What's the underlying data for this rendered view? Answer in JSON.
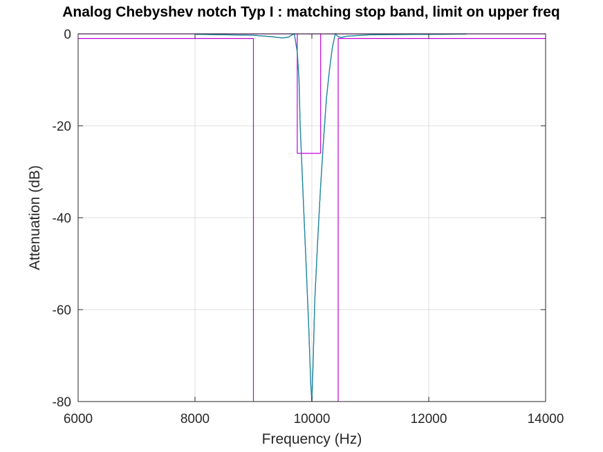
{
  "chart_data": {
    "type": "line",
    "title": "Analog Chebyshev notch Typ I : matching stop band, limit on upper freq",
    "xlabel": "Frequency (Hz)",
    "ylabel": "Attenuation (dB)",
    "xlim": [
      6000,
      14000
    ],
    "ylim": [
      -80,
      0
    ],
    "xticks": [
      6000,
      8000,
      10000,
      12000,
      14000
    ],
    "xtick_labels": [
      "6000",
      "8000",
      "10000",
      "12000",
      "14000"
    ],
    "yticks": [
      0,
      -20,
      -40,
      -60,
      -80
    ],
    "ytick_labels": [
      "0",
      "-20",
      "-40",
      "-60",
      "-80"
    ],
    "grid": true,
    "colors": {
      "response": "#1f8c9c",
      "response_dark": "#1a2fd0",
      "template": "#c000d8",
      "grid": "#dcdcdc",
      "axis": "#262626"
    },
    "series": [
      {
        "x": [
          8000,
          9000,
          9300,
          9500,
          9600,
          9650,
          9700,
          9750,
          9780,
          9800,
          9850,
          9900,
          9950,
          9980,
          10000,
          10020,
          10050,
          10100,
          10150,
          10200,
          10250,
          10300,
          10350,
          10400,
          10450,
          10500,
          10600,
          11000,
          12000,
          12650
        ],
        "y": [
          -0.1,
          -0.3,
          -0.6,
          -0.9,
          -0.7,
          -0.3,
          0,
          -4,
          -10,
          -20,
          -35,
          -50,
          -65,
          -76,
          -80,
          -72,
          -58,
          -45,
          -33,
          -23,
          -14,
          -8,
          -3,
          0,
          -0.6,
          -0.8,
          -0.5,
          -0.2,
          -0.1,
          -0.05
        ]
      }
    ],
    "template": {
      "passband_ripple_db": -1,
      "passband_edges": [
        9000,
        10450
      ],
      "stopband_edges": [
        9750,
        10150
      ],
      "stopband_atten_db": -26
    }
  }
}
